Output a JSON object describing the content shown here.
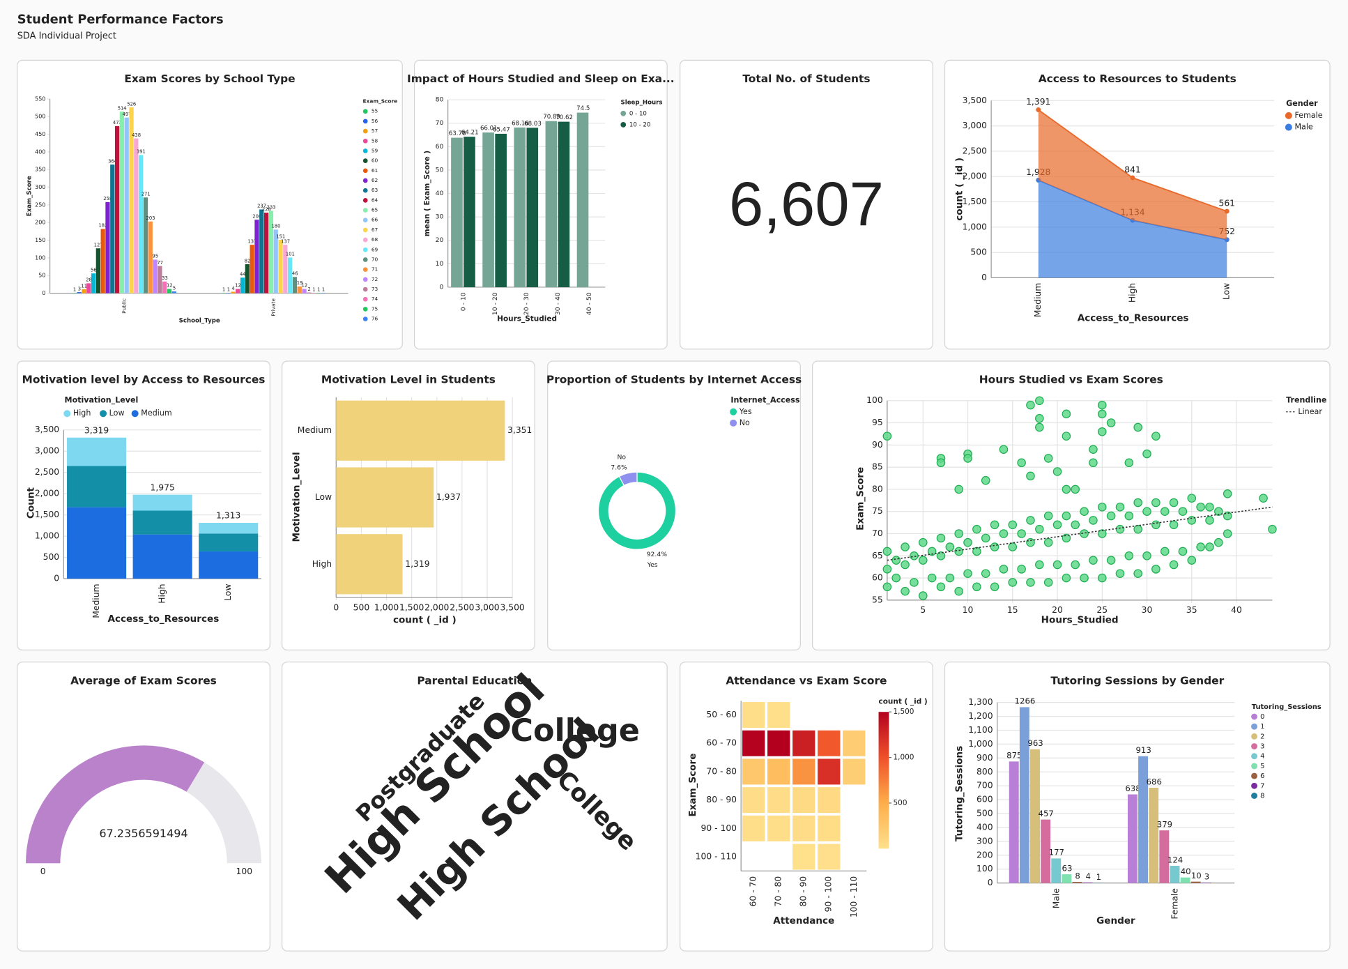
{
  "header": {
    "title": "Student Performance Factors",
    "subtitle": "SDA Individual Project"
  },
  "chart_data": [
    {
      "type": "bar",
      "title": "Exam Scores by School Type",
      "x_label": "School_Type",
      "y_label": "Exam_Score",
      "legend_title": "Exam_Score",
      "categories": [
        "Public",
        "Private"
      ],
      "ylim": [
        0,
        550
      ],
      "yticks": [
        0,
        50,
        100,
        150,
        200,
        250,
        300,
        350,
        400,
        450,
        500,
        550
      ],
      "grid": false,
      "series": [
        {
          "name": "55",
          "color": "#22c55e",
          "values": [
            1,
            1
          ]
        },
        {
          "name": "56",
          "color": "#2563eb",
          "values": [
            3,
            1
          ]
        },
        {
          "name": "57",
          "color": "#f59e0b",
          "values": [
            11,
            4
          ]
        },
        {
          "name": "58",
          "color": "#ec4899",
          "values": [
            28,
            12
          ]
        },
        {
          "name": "59",
          "color": "#06b6d4",
          "values": [
            56,
            44
          ]
        },
        {
          "name": "60",
          "color": "#14532d",
          "values": [
            127,
            82
          ]
        },
        {
          "name": "61",
          "color": "#ea580c",
          "values": [
            182,
            137
          ]
        },
        {
          "name": "62",
          "color": "#7e22ce",
          "values": [
            258,
            208
          ]
        },
        {
          "name": "63",
          "color": "#0e7490",
          "values": [
            364,
            237
          ]
        },
        {
          "name": "64",
          "color": "#be123c",
          "values": [
            473,
            228
          ]
        },
        {
          "name": "65",
          "color": "#86efac",
          "values": [
            514,
            233
          ]
        },
        {
          "name": "66",
          "color": "#93c5fd",
          "values": [
            497,
            180
          ]
        },
        {
          "name": "67",
          "color": "#fcd34d",
          "values": [
            526,
            151
          ]
        },
        {
          "name": "68",
          "color": "#f9a8d4",
          "values": [
            438,
            137
          ]
        },
        {
          "name": "69",
          "color": "#67e8f9",
          "values": [
            391,
            101
          ]
        },
        {
          "name": "70",
          "color": "#5f8f80",
          "values": [
            271,
            46
          ]
        },
        {
          "name": "71",
          "color": "#fb923c",
          "values": [
            203,
            19
          ]
        },
        {
          "name": "72",
          "color": "#c084fc",
          "values": [
            95,
            12
          ]
        },
        {
          "name": "73",
          "color": "#be7b9b",
          "values": [
            77,
            2
          ]
        },
        {
          "name": "74",
          "color": "#f472b6",
          "values": [
            33,
            1
          ]
        },
        {
          "name": "75",
          "color": "#22c55e",
          "values": [
            12,
            1
          ]
        },
        {
          "name": "76",
          "color": "#3b82f6",
          "values": [
            5,
            1
          ]
        }
      ]
    },
    {
      "type": "bar",
      "title": "Impact of Hours Studied and Sleep on Exa...",
      "x_label": "Hours_Studied",
      "y_label": "mean ( Exam_Score )",
      "legend_title": "Sleep_Hours",
      "categories": [
        "0 - 10",
        "10 - 20",
        "20 - 30",
        "30 - 40",
        "40 - 50"
      ],
      "ylim": [
        0,
        80
      ],
      "yticks": [
        0,
        10,
        20,
        30,
        40,
        50,
        60,
        70,
        80
      ],
      "grid": true,
      "series": [
        {
          "name": "0 - 10",
          "color": "#74a595",
          "values": [
            63.78,
            66.01,
            68.16,
            70.89,
            74.5
          ]
        },
        {
          "name": "10 - 20",
          "color": "#155e45",
          "values": [
            64.21,
            65.47,
            68.03,
            70.62,
            null
          ]
        }
      ]
    },
    {
      "type": "kpi",
      "title": "Total No. of Students",
      "value": 6607,
      "value_label": "6,607"
    },
    {
      "type": "area",
      "title": "Access to Resources to Students",
      "x_label": "Access_to_Resources",
      "y_label": "count ( _id )",
      "legend_title": "Gender",
      "categories": [
        "Medium",
        "High",
        "Low"
      ],
      "ylim": [
        0,
        3500
      ],
      "grid": true,
      "yticks": [
        0,
        500,
        {
          "value": 1000,
          "label": "1,000"
        },
        {
          "value": 1500,
          "label": "1,500"
        },
        {
          "value": 2000,
          "label": "2,000"
        },
        {
          "value": 2500,
          "label": "2,500"
        },
        {
          "value": 3000,
          "label": "3,000"
        },
        {
          "value": 3500,
          "label": "3,500"
        }
      ],
      "series": [
        {
          "name": "Female",
          "color": "#e8692a",
          "values": [
            1391,
            841,
            561
          ],
          "value_labels": [
            "1,391",
            "841",
            "561"
          ]
        },
        {
          "name": "Male",
          "color": "#3b7de0",
          "values": [
            1928,
            1134,
            752
          ],
          "value_labels": [
            "1,928",
            "1,134",
            "752"
          ]
        }
      ]
    },
    {
      "type": "stackedbar",
      "title": "Motivation level by Access to Resources",
      "x_label": "Access_to_Resources",
      "y_label": "Count",
      "legend_title": "Motivation_Level",
      "categories": [
        "Medium",
        "High",
        "Low"
      ],
      "ylim": [
        0,
        3500
      ],
      "grid": true,
      "yticks": [
        0,
        500,
        {
          "value": 1000,
          "label": "1,000"
        },
        {
          "value": 1500,
          "label": "1,500"
        },
        {
          "value": 2000,
          "label": "2,000"
        },
        {
          "value": 2500,
          "label": "2,500"
        },
        {
          "value": 3000,
          "label": "3,000"
        },
        {
          "value": 3500,
          "label": "3,500"
        }
      ],
      "series": [
        {
          "name": "High",
          "color": "#7dd8f0",
          "values": [
            669,
            375,
            253
          ]
        },
        {
          "name": "Low",
          "color": "#138fa8",
          "values": [
            970,
            560,
            420
          ]
        },
        {
          "name": "Medium",
          "color": "#1c6ee0",
          "values": [
            1680,
            1040,
            640
          ]
        }
      ],
      "totals": [
        3319,
        1975,
        1313
      ],
      "total_labels": [
        "3,319",
        "1,975",
        "1,313"
      ]
    },
    {
      "type": "hbar",
      "title": "Motivation Level in Students",
      "x_label": "count ( _id )",
      "y_label": "Motivation_Level",
      "categories": [
        "Medium",
        "Low",
        "High"
      ],
      "values": [
        3351,
        1937,
        1319
      ],
      "value_labels": [
        "3,351",
        "1,937",
        "1,319"
      ],
      "color": "#f0d27a",
      "xlim": [
        0,
        3500
      ],
      "grid": true,
      "xticks": [
        0,
        500,
        {
          "value": 1000,
          "label": "1,000"
        },
        {
          "value": 1500,
          "label": "1,500"
        },
        {
          "value": 2000,
          "label": "2,000"
        },
        {
          "value": 2500,
          "label": "2,500"
        },
        {
          "value": 3000,
          "label": "3,000"
        },
        {
          "value": 3500,
          "label": "3,500"
        }
      ]
    },
    {
      "type": "donut",
      "title": "Proportion of Students by Internet Access",
      "legend_title": "Internet_Access",
      "categories": [
        "Yes",
        "No"
      ],
      "values": [
        92.4,
        7.6
      ],
      "value_labels": [
        "92.4%",
        "7.6%"
      ],
      "colors": [
        "#1ecfa0",
        "#8f8ff0"
      ]
    },
    {
      "type": "scatter",
      "title": "Hours Studied vs Exam Scores",
      "x_label": "Hours_Studied",
      "y_label": "Exam_Score",
      "legend_title": "Trendline",
      "xlim": [
        1,
        44
      ],
      "ylim": [
        55,
        100
      ],
      "xticks": [
        5,
        10,
        15,
        20,
        25,
        30,
        35,
        40
      ],
      "yticks": [
        55,
        60,
        65,
        70,
        75,
        80,
        85,
        90,
        95,
        100
      ],
      "grid": true,
      "color": "#5fd98a",
      "x": [
        1,
        1,
        1,
        3,
        3,
        3,
        5,
        5,
        5,
        7,
        7,
        7,
        9,
        9,
        9,
        11,
        11,
        11,
        13,
        13,
        13,
        15,
        15,
        15,
        17,
        17,
        17,
        19,
        19,
        19,
        21,
        21,
        21,
        23,
        23,
        23,
        25,
        25,
        25,
        27,
        27,
        27,
        29,
        29,
        29,
        31,
        31,
        31,
        33,
        33,
        33,
        35,
        35,
        35,
        37,
        37,
        37,
        39,
        39,
        39,
        43,
        44,
        2,
        2,
        4,
        4,
        6,
        6,
        8,
        8,
        10,
        10,
        12,
        12,
        14,
        14,
        16,
        16,
        18,
        18,
        20,
        20,
        22,
        22,
        24,
        24,
        26,
        26,
        28,
        28,
        30,
        30,
        32,
        32,
        34,
        34,
        36,
        36,
        38,
        38,
        1,
        7,
        7,
        10,
        10,
        9,
        12,
        14,
        16,
        17,
        18,
        18,
        18,
        19,
        21,
        21,
        21,
        22,
        24,
        24,
        25,
        25,
        25,
        26,
        28,
        29,
        30,
        31,
        17,
        20
      ],
      "y": [
        58,
        62,
        66,
        57,
        63,
        67,
        56,
        64,
        68,
        58,
        65,
        69,
        57,
        66,
        70,
        58,
        66,
        71,
        58,
        67,
        72,
        59,
        67,
        72,
        59,
        68,
        73,
        59,
        68,
        74,
        60,
        69,
        74,
        60,
        70,
        75,
        60,
        70,
        76,
        61,
        71,
        76,
        61,
        71,
        77,
        62,
        72,
        77,
        63,
        72,
        77,
        64,
        73,
        78,
        67,
        73,
        76,
        70,
        74,
        79,
        78,
        71,
        60,
        64,
        59,
        65,
        60,
        66,
        60,
        67,
        61,
        68,
        61,
        69,
        62,
        70,
        62,
        70,
        63,
        71,
        63,
        72,
        63,
        72,
        64,
        73,
        64,
        74,
        65,
        74,
        65,
        75,
        66,
        75,
        66,
        75,
        67,
        76,
        68,
        75,
        92,
        87,
        86,
        88,
        87,
        80,
        82,
        89,
        86,
        99,
        100,
        96,
        94,
        87,
        92,
        97,
        80,
        80,
        89,
        86,
        99,
        97,
        93,
        95,
        86,
        94,
        88,
        92,
        83,
        84
      ],
      "trendline": {
        "name": "Linear",
        "x": [
          1,
          44
        ],
        "y": [
          64,
          76
        ]
      }
    },
    {
      "type": "gauge",
      "title": "Average of Exam Scores",
      "value": 67.2356591494,
      "range": [
        0,
        100
      ],
      "color": "#bb82cc",
      "track_color": "#e8e7ec"
    },
    {
      "type": "wordcloud",
      "title": "Parental Education",
      "words": [
        {
          "text": "Postgraduate",
          "color": "#1dd6cf"
        },
        {
          "text": "High School",
          "color": "#1dd6cf"
        },
        {
          "text": "College",
          "color": "#1dd6cf"
        },
        {
          "text": "High School",
          "color": "#c8143c"
        },
        {
          "text": "College",
          "color": "#c8143c"
        }
      ]
    },
    {
      "type": "heatmap",
      "title": "Attendance vs Exam Score",
      "x_label": "Attendance",
      "y_label": "Exam_Score",
      "legend_title": "count ( _id )",
      "x_categories": [
        "60 - 70",
        "70 - 80",
        "80 - 90",
        "90 - 100",
        "100 - 110"
      ],
      "y_categories": [
        "50 - 60",
        "60 - 70",
        "70 - 80",
        "80 - 90",
        "90 - 100",
        "100 - 110"
      ],
      "values": [
        [
          20,
          15,
          null,
          null,
          null
        ],
        [
          1480,
          1500,
          1300,
          950,
          200
        ],
        [
          250,
          350,
          650,
          1200,
          180
        ],
        [
          30,
          40,
          60,
          70,
          null
        ],
        [
          20,
          25,
          30,
          35,
          null
        ],
        [
          null,
          null,
          5,
          8,
          null
        ]
      ],
      "zlim": [
        0,
        1500
      ],
      "zticks": [
        500,
        {
          "value": 1000,
          "label": "1,000"
        },
        {
          "value": 1500,
          "label": "1,500"
        }
      ],
      "colors": [
        "#ffe08c",
        "#fdae4b",
        "#f0502a",
        "#b3001f"
      ]
    },
    {
      "type": "bar",
      "title": "Tutoring Sessions by Gender",
      "x_label": "Gender",
      "y_label": "Tutoring_Sessions",
      "legend_title": "Tutoring_Sessions",
      "categories": [
        "Male",
        "Female"
      ],
      "ylim": [
        0,
        1300
      ],
      "grid": true,
      "yticks": [
        0,
        100,
        200,
        300,
        400,
        500,
        600,
        700,
        800,
        900,
        {
          "value": 1000,
          "label": "1,000"
        },
        {
          "value": 1100,
          "label": "1,100"
        },
        {
          "value": 1200,
          "label": "1,200"
        },
        {
          "value": 1300,
          "label": "1,300"
        }
      ],
      "series": [
        {
          "name": "0",
          "color": "#b87fd6",
          "values": [
            875,
            638
          ]
        },
        {
          "name": "1",
          "color": "#7b9fd8",
          "values": [
            1266,
            913
          ]
        },
        {
          "name": "2",
          "color": "#d6bf7a",
          "values": [
            963,
            686
          ]
        },
        {
          "name": "3",
          "color": "#d46d9e",
          "values": [
            457,
            379
          ]
        },
        {
          "name": "4",
          "color": "#76c9cf",
          "values": [
            177,
            124
          ]
        },
        {
          "name": "5",
          "color": "#7fe0b0",
          "values": [
            63,
            40
          ]
        },
        {
          "name": "6",
          "color": "#9a6040",
          "values": [
            8,
            10
          ]
        },
        {
          "name": "7",
          "color": "#7b2aa0",
          "values": [
            4,
            3
          ]
        },
        {
          "name": "8",
          "color": "#1f7d9e",
          "values": [
            1,
            null
          ]
        }
      ]
    }
  ]
}
